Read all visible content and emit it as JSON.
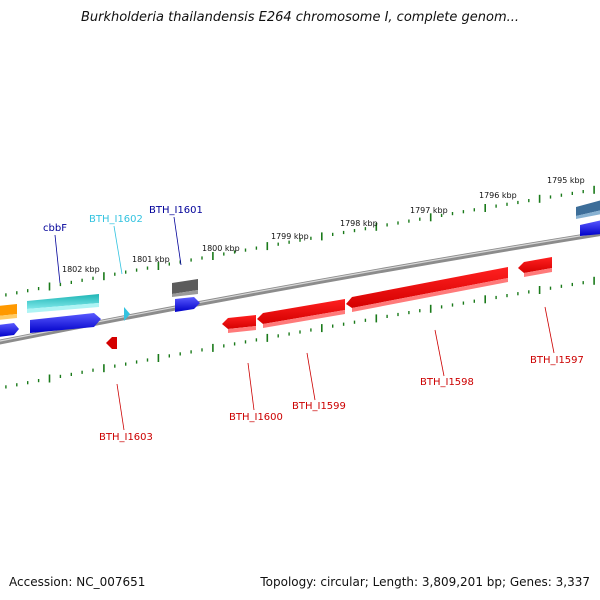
{
  "title": "Burkholderia thailandensis E264 chromosome I, complete genom...",
  "footer": {
    "accession": "Accession: NC_007651",
    "summary": "Topology: circular; Length: 3,809,201 bp; Genes: 3,337"
  },
  "colors": {
    "backbone": "#8a8a8a",
    "tick": "#1a7a1a",
    "forward_label": "#000099",
    "reverse_label": "#cc0000",
    "highlight_label": "#33c3e0"
  },
  "scale": {
    "labels": [
      "1802 kbp",
      "1801 kbp",
      "1800 kbp",
      "1799 kbp",
      "1798 kbp",
      "1797 kbp",
      "1796 kbp",
      "1795 kbp"
    ]
  },
  "genes": [
    {
      "label": "cbbF",
      "color": "#000099"
    },
    {
      "label": "BTH_I1602",
      "color": "#33c3e0"
    },
    {
      "label": "BTH_I1601",
      "color": "#000099"
    },
    {
      "label": "BTH_I1603",
      "color": "#cc0000"
    },
    {
      "label": "BTH_I1600",
      "color": "#cc0000"
    },
    {
      "label": "BTH_I1599",
      "color": "#cc0000"
    },
    {
      "label": "BTH_I1598",
      "color": "#cc0000"
    },
    {
      "label": "BTH_I1597",
      "color": "#cc0000"
    }
  ]
}
